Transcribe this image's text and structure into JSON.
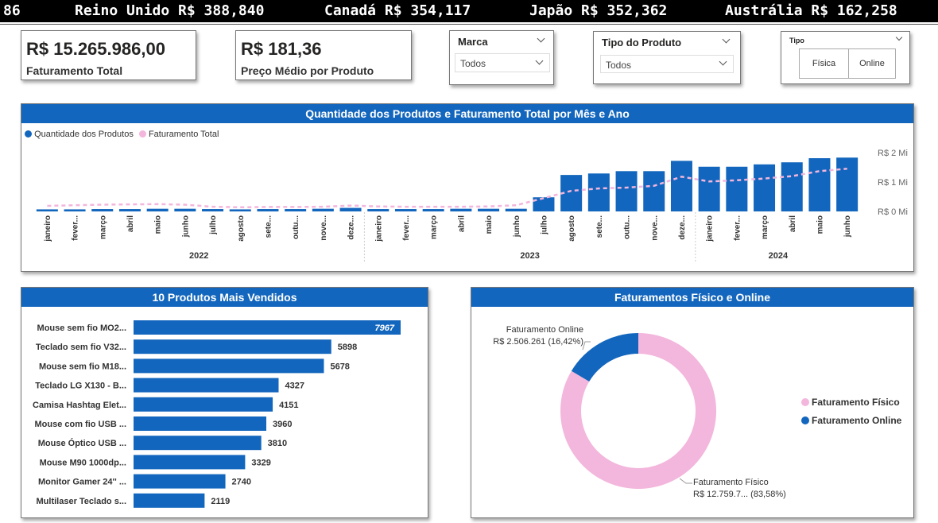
{
  "ticker": [
    {
      "text": "86"
    },
    {
      "text": "Reino Unido R$ 388,840"
    },
    {
      "text": "Canadá R$ 354,117"
    },
    {
      "text": "Japão R$ 352,362"
    },
    {
      "text": "Austrália R$ 162,258"
    }
  ],
  "kpis": {
    "revenue": {
      "value": "R$ 15.265.986,00",
      "label": "Faturamento Total"
    },
    "avg_price": {
      "value": "R$ 181,36",
      "label": "Preço Médio por Produto"
    }
  },
  "filters": {
    "marca": {
      "title": "Marca",
      "value": "Todos"
    },
    "tipo_produto": {
      "title": "Tipo do Produto",
      "value": "Todos"
    },
    "tipo": {
      "title": "Tipo",
      "options": [
        "Física",
        "Online"
      ]
    }
  },
  "monthly_chart": {
    "title": "Quantidade dos Produtos e Faturamento Total por Mês e Ano",
    "legend": [
      "Quantidade dos Produtos",
      "Faturamento Total"
    ],
    "colors": {
      "bar": "#1366bd",
      "line": "#f3b6dc"
    },
    "chart_data": {
      "type": "bar",
      "months": [
        "janeiro",
        "fever...",
        "março",
        "abril",
        "maio",
        "junho",
        "julho",
        "agosto",
        "sete...",
        "outu...",
        "nove...",
        "deze...",
        "janeiro",
        "fever...",
        "março",
        "abril",
        "maio",
        "junho",
        "julho",
        "agosto",
        "sete...",
        "outu...",
        "nove...",
        "deze...",
        "janeiro",
        "fever...",
        "março",
        "abril",
        "maio",
        "junho"
      ],
      "years": [
        "2022",
        "2023",
        "2024"
      ],
      "year_spans": [
        12,
        12,
        6
      ],
      "y_ticks": [
        "R$ 2 Mi",
        "R$ 1 Mi",
        "R$ 0 Mi"
      ],
      "y_tick_values": [
        2000000,
        1000000,
        0
      ],
      "series_quantidade": [
        0.07,
        0.07,
        0.08,
        0.08,
        0.09,
        0.09,
        0.08,
        0.07,
        0.08,
        0.08,
        0.09,
        0.12,
        0.08,
        0.08,
        0.08,
        0.09,
        0.09,
        0.09,
        0.48,
        1.24,
        1.29,
        1.37,
        1.37,
        1.72,
        1.52,
        1.52,
        1.6,
        1.67,
        1.81,
        1.83
      ],
      "series_faturamento": [
        190000,
        210000,
        230000,
        240000,
        250000,
        230000,
        160000,
        140000,
        150000,
        150000,
        160000,
        200000,
        170000,
        160000,
        160000,
        160000,
        170000,
        210000,
        450000,
        700000,
        780000,
        810000,
        870000,
        1180000,
        1020000,
        1060000,
        1120000,
        1200000,
        1370000,
        1450000
      ]
    }
  },
  "top_products": {
    "title": "10 Produtos Mais Vendidos",
    "chart_data": {
      "type": "bar",
      "categories": [
        "Mouse sem fio MO2...",
        "Teclado sem fio V32...",
        "Mouse sem fio M18...",
        "Teclado LG X130 - B...",
        "Camisa Hashtag Elet...",
        "Mouse com fio USB ...",
        "Mouse Óptico USB ...",
        "Mouse M90 1000dp...",
        "Monitor Gamer 24'' ...",
        "Multilaser Teclado s..."
      ],
      "values": [
        7967,
        5898,
        5678,
        4327,
        4151,
        3960,
        3810,
        3329,
        2740,
        2119
      ],
      "value_labels": [
        "7967",
        "5898",
        "5678",
        "4327",
        "4151",
        "3960",
        "3810",
        "3329",
        "2740",
        "2119"
      ]
    }
  },
  "donut": {
    "title": "Faturamentos Físico e Online",
    "colors": {
      "fisico": "#f3b6dc",
      "online": "#1366bd"
    },
    "legend": [
      "Faturamento Físico",
      "Faturamento Online"
    ],
    "online_label": {
      "line1": "Faturamento Online",
      "line2": "R$ 2.506.261 (16,42%)"
    },
    "fisico_label": {
      "line1": "Faturamento Físico",
      "line2": "R$ 12.759.7... (83,58%)"
    },
    "chart_data": {
      "type": "pie",
      "categories": [
        "Faturamento Físico",
        "Faturamento Online"
      ],
      "values": [
        83.58,
        16.42
      ]
    }
  }
}
